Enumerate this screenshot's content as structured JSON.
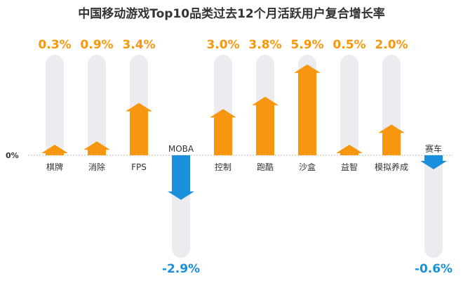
{
  "chart_data": {
    "type": "bar",
    "title": "中国移动游戏Top10品类过去12个月活跃用户复合增长率",
    "categories": [
      "棋牌",
      "消除",
      "FPS",
      "MOBA",
      "控制",
      "跑酷",
      "沙盒",
      "益智",
      "模拟养成",
      "赛车"
    ],
    "values": [
      0.3,
      0.9,
      3.4,
      -2.9,
      3.0,
      3.8,
      5.9,
      0.5,
      2.0,
      -0.6
    ],
    "value_labels": [
      "0.3%",
      "0.9%",
      "3.4%",
      "-2.9%",
      "3.0%",
      "3.8%",
      "5.9%",
      "0.5%",
      "2.0%",
      "-0.6%"
    ],
    "zero_label": "0%",
    "unit": "%",
    "mark": "arrow",
    "colors": {
      "positive": "#f7970f",
      "negative": "#1a8fdc",
      "track": "#ececf0",
      "title": "#333333"
    }
  }
}
